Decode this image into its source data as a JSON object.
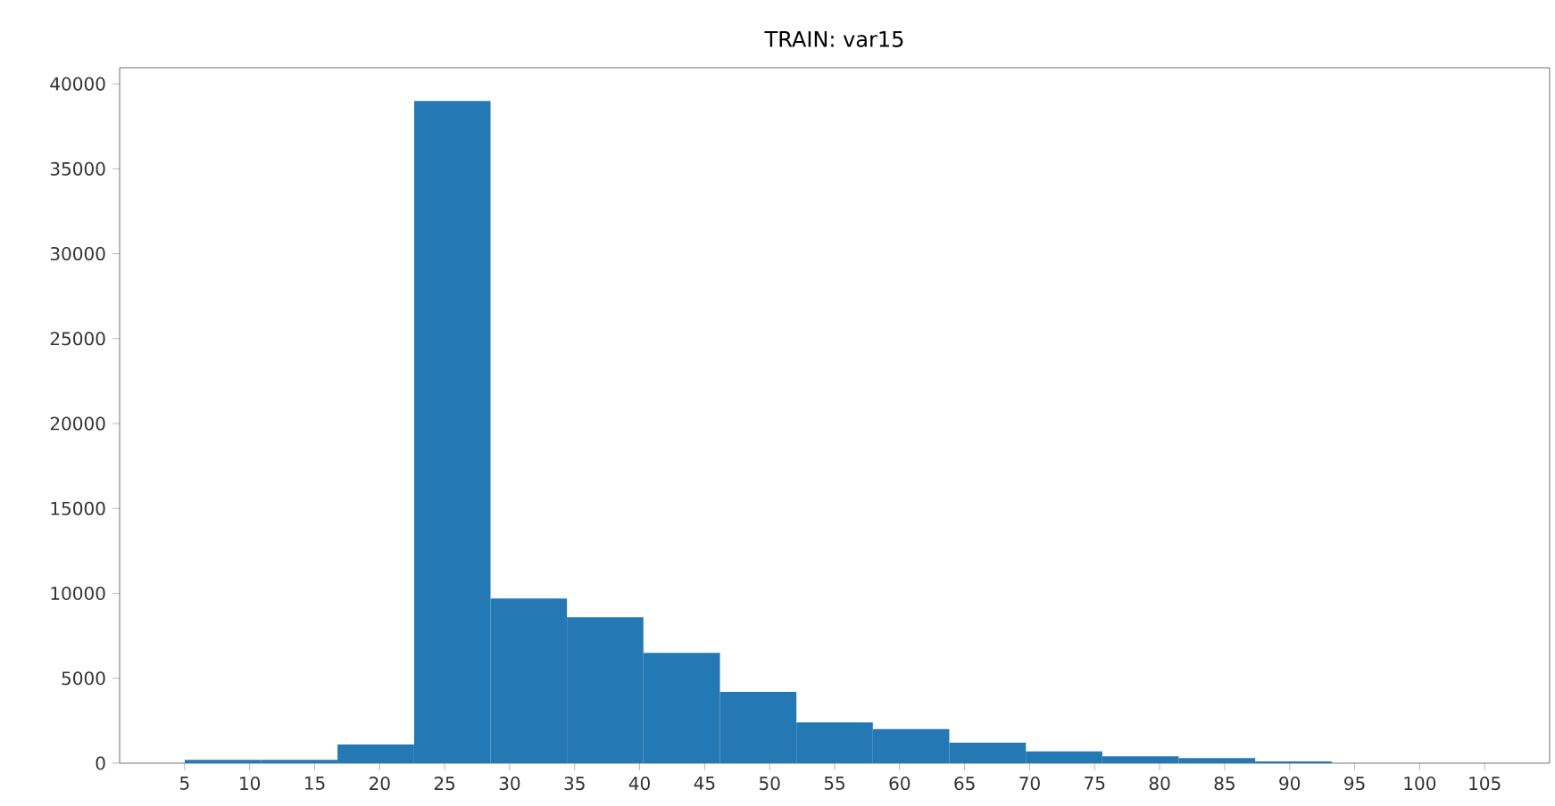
{
  "chart_data": {
    "type": "histogram",
    "title": "TRAIN: var15",
    "bins": [
      5,
      10.88,
      16.76,
      22.65,
      28.53,
      34.41,
      40.29,
      46.18,
      52.06,
      57.94,
      63.82,
      69.71,
      75.59,
      81.47,
      87.35,
      93.24,
      99.12,
      105
    ],
    "values": [
      200,
      200,
      1100,
      39000,
      9700,
      8600,
      6500,
      4200,
      2400,
      2000,
      1200,
      700,
      400,
      300,
      100,
      0,
      0
    ],
    "color": "#2478b4",
    "xlim": [
      0,
      110
    ],
    "ylim": [
      0,
      40950
    ],
    "xticks": [
      5,
      10,
      15,
      20,
      25,
      30,
      35,
      40,
      45,
      50,
      55,
      60,
      65,
      70,
      75,
      80,
      85,
      90,
      95,
      100,
      105
    ],
    "yticks": [
      0,
      5000,
      10000,
      15000,
      20000,
      25000,
      30000,
      35000,
      40000
    ],
    "grid": false
  }
}
